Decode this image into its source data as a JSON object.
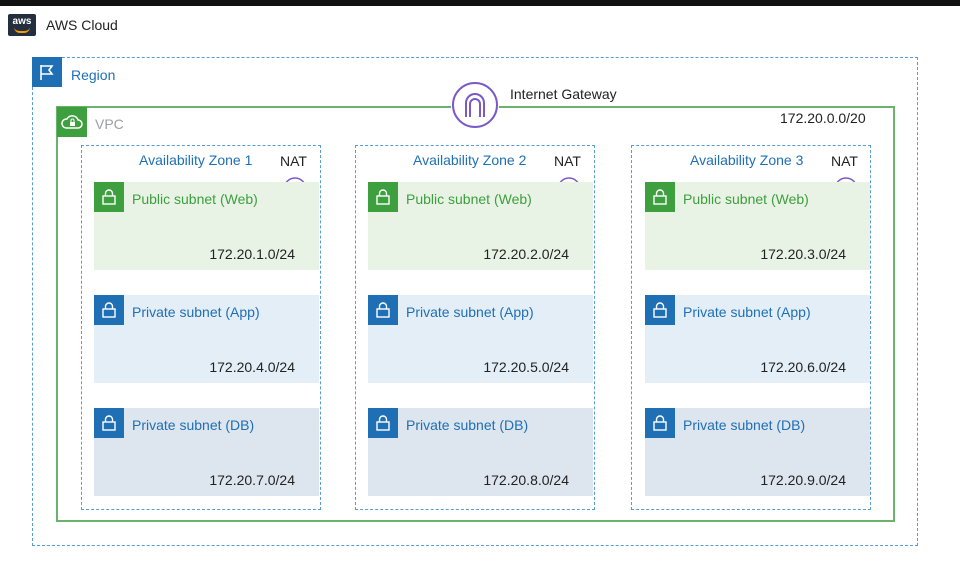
{
  "cloud": {
    "title": "AWS Cloud",
    "logo_text": "aws",
    "icon": "aws-logo-icon"
  },
  "region": {
    "label": "Region",
    "icon": "flag-icon"
  },
  "internet_gateway": {
    "label": "Internet Gateway",
    "icon": "internet-gateway-icon"
  },
  "vpc": {
    "label": "VPC",
    "cidr": "172.20.0.0/20",
    "icon": "cloud-lock-icon"
  },
  "colors": {
    "public": "#3d9f3d",
    "private": "#1f6fb5",
    "gateway": "#7a59c9"
  },
  "zones": [
    {
      "label": "Availability Zone 1",
      "nat": "NAT",
      "subnets": [
        {
          "name": "Public subnet (Web)",
          "cidr": "172.20.1.0/24"
        },
        {
          "name": "Private subnet (App)",
          "cidr": "172.20.4.0/24"
        },
        {
          "name": "Private subnet (DB)",
          "cidr": "172.20.7.0/24"
        }
      ]
    },
    {
      "label": "Availability Zone 2",
      "nat": "NAT",
      "subnets": [
        {
          "name": "Public subnet (Web)",
          "cidr": "172.20.2.0/24"
        },
        {
          "name": "Private subnet (App)",
          "cidr": "172.20.5.0/24"
        },
        {
          "name": "Private subnet (DB)",
          "cidr": "172.20.8.0/24"
        }
      ]
    },
    {
      "label": "Availability Zone 3",
      "nat": "NAT",
      "subnets": [
        {
          "name": "Public subnet (Web)",
          "cidr": "172.20.3.0/24"
        },
        {
          "name": "Private subnet (App)",
          "cidr": "172.20.6.0/24"
        },
        {
          "name": "Private subnet (DB)",
          "cidr": "172.20.9.0/24"
        }
      ]
    }
  ]
}
